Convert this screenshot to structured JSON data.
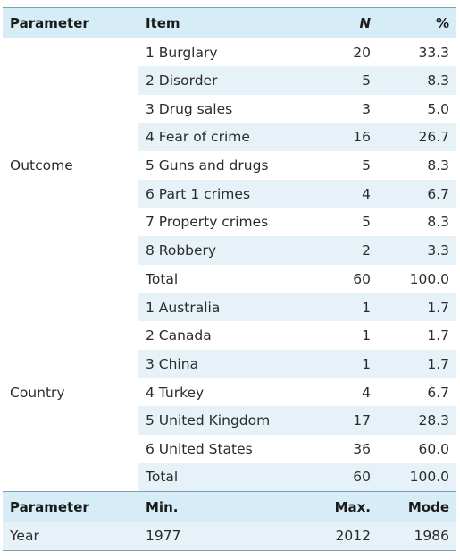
{
  "header": {
    "parameter": "Parameter",
    "item": "Item",
    "n": "N",
    "pct": "%"
  },
  "outcome": {
    "parameter": "Outcome",
    "rows": [
      {
        "item": "1 Burglary",
        "n": "20",
        "pct": "33.3"
      },
      {
        "item": "2 Disorder",
        "n": "5",
        "pct": "8.3"
      },
      {
        "item": "3 Drug sales",
        "n": "3",
        "pct": "5.0"
      },
      {
        "item": "4 Fear of crime",
        "n": "16",
        "pct": "26.7"
      },
      {
        "item": "5 Guns and drugs",
        "n": "5",
        "pct": "8.3"
      },
      {
        "item": "6 Part 1 crimes",
        "n": "4",
        "pct": "6.7"
      },
      {
        "item": "7 Property crimes",
        "n": "5",
        "pct": "8.3"
      },
      {
        "item": "8 Robbery",
        "n": "2",
        "pct": "3.3"
      },
      {
        "item": "Total",
        "n": "60",
        "pct": "100.0"
      }
    ]
  },
  "country": {
    "parameter": "Country",
    "rows": [
      {
        "item": "1 Australia",
        "n": "1",
        "pct": "1.7"
      },
      {
        "item": "2 Canada",
        "n": "1",
        "pct": "1.7"
      },
      {
        "item": "3 China",
        "n": "1",
        "pct": "1.7"
      },
      {
        "item": "4 Turkey",
        "n": "4",
        "pct": "6.7"
      },
      {
        "item": "5 United Kingdom",
        "n": "17",
        "pct": "28.3"
      },
      {
        "item": "6 United States",
        "n": "36",
        "pct": "60.0"
      },
      {
        "item": "Total",
        "n": "60",
        "pct": "100.0"
      }
    ]
  },
  "header2": {
    "parameter": "Parameter",
    "min": "Min.",
    "max": "Max.",
    "mode": "Mode"
  },
  "year": {
    "parameter": "Year",
    "min": "1977",
    "max": "2012",
    "mode": "1986"
  }
}
